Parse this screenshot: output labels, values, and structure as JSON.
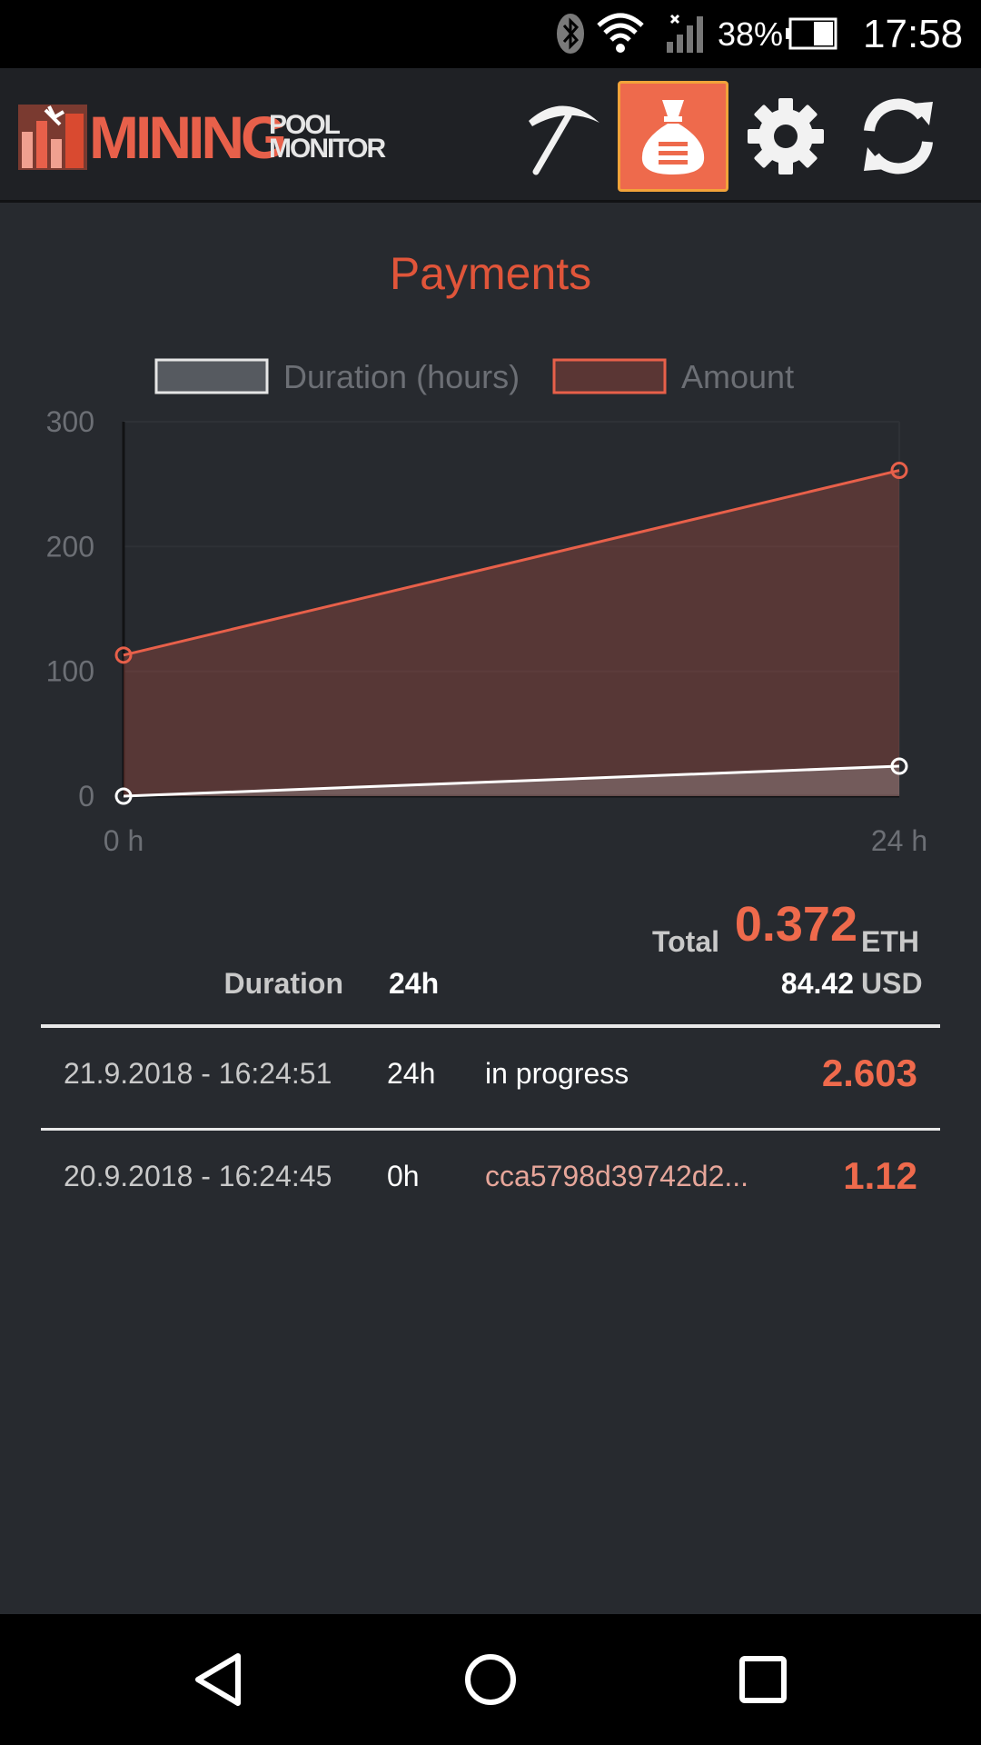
{
  "status_bar": {
    "battery_percent": "38%",
    "time": "17:58",
    "icons": [
      "bluetooth-icon",
      "wifi-icon",
      "signal-icon",
      "battery-icon"
    ]
  },
  "header": {
    "logo_word_main": "MINING",
    "logo_word_top": "POOL",
    "logo_word_bottom": "MONITOR",
    "buttons": [
      {
        "icon": "pickaxe-icon",
        "active": false
      },
      {
        "icon": "money-bag-icon",
        "active": true
      },
      {
        "icon": "gear-icon",
        "active": false
      },
      {
        "icon": "refresh-icon",
        "active": false
      }
    ]
  },
  "page": {
    "title": "Payments"
  },
  "chart_data": {
    "type": "area",
    "categories": [
      "0 h",
      "24 h"
    ],
    "series": [
      {
        "name": "Duration (hours)",
        "values": [
          0,
          24
        ],
        "color": "#ffffff"
      },
      {
        "name": "Amount",
        "values": [
          113,
          261
        ],
        "color": "#e8604a"
      }
    ],
    "ylim": [
      0,
      300
    ],
    "yticks": [
      0,
      100,
      200,
      300
    ],
    "grid": true,
    "legend_position": "top"
  },
  "totals": {
    "total_label": "Total",
    "total_value": "0.372",
    "total_unit": "ETH",
    "usd_value": "84.42",
    "usd_unit": "USD",
    "duration_label": "Duration",
    "duration_value": "24h"
  },
  "payments": [
    {
      "date": "21.9.2018 - 16:24:51",
      "duration": "24h",
      "status": "in progress",
      "amount": "2.603"
    },
    {
      "date": "20.9.2018 - 16:24:45",
      "duration": "0h",
      "tx_hash": "cca5798d39742d2...",
      "amount": "1.12"
    }
  ],
  "colors": {
    "accent": "#ef6a4c",
    "background": "#272a2f",
    "header_background": "#1f2125"
  }
}
